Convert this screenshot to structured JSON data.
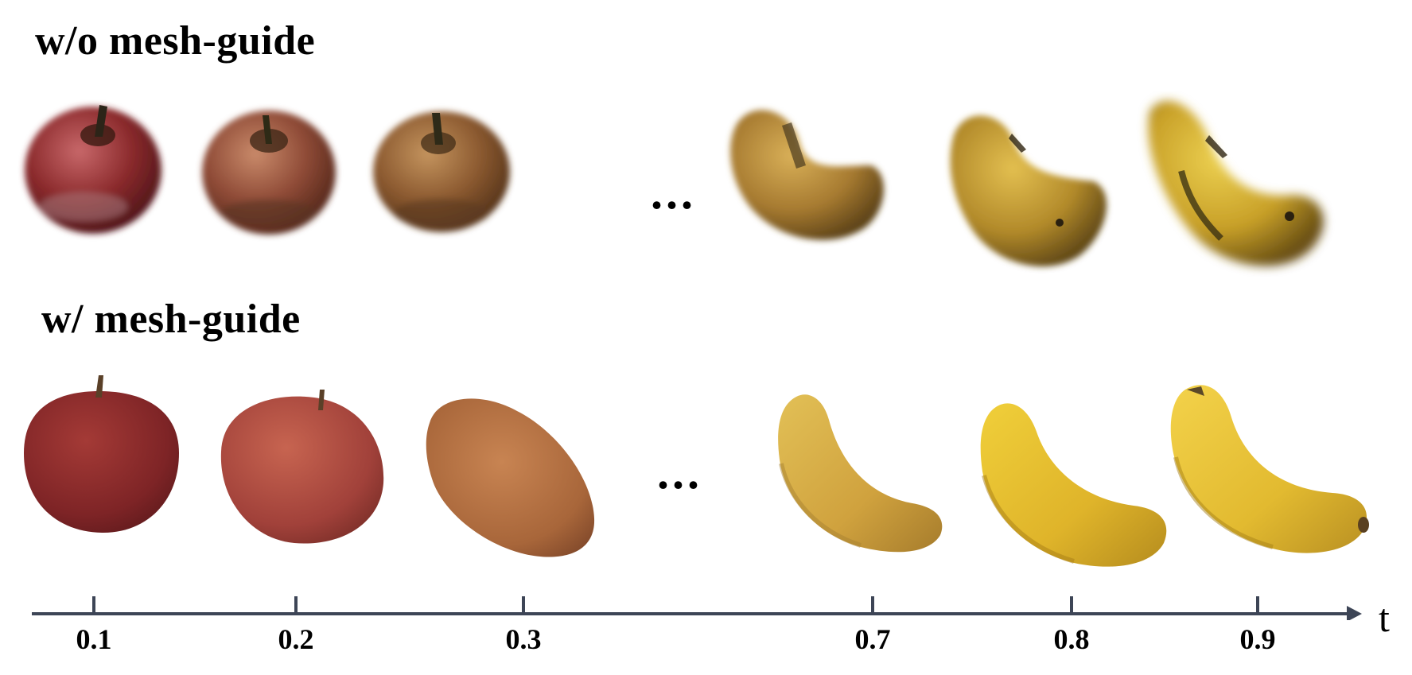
{
  "rows": {
    "top_label": "w/o mesh-guide",
    "bottom_label": "w/ mesh-guide"
  },
  "ellipsis": "...",
  "axis": {
    "name": "t",
    "ticks": [
      "0.1",
      "0.2",
      "0.3",
      "0.7",
      "0.8",
      "0.9"
    ]
  },
  "colors": {
    "apple_red": "#8a2a2a",
    "banana_yellow": "#e0b52c",
    "axis": "#3d4556"
  }
}
